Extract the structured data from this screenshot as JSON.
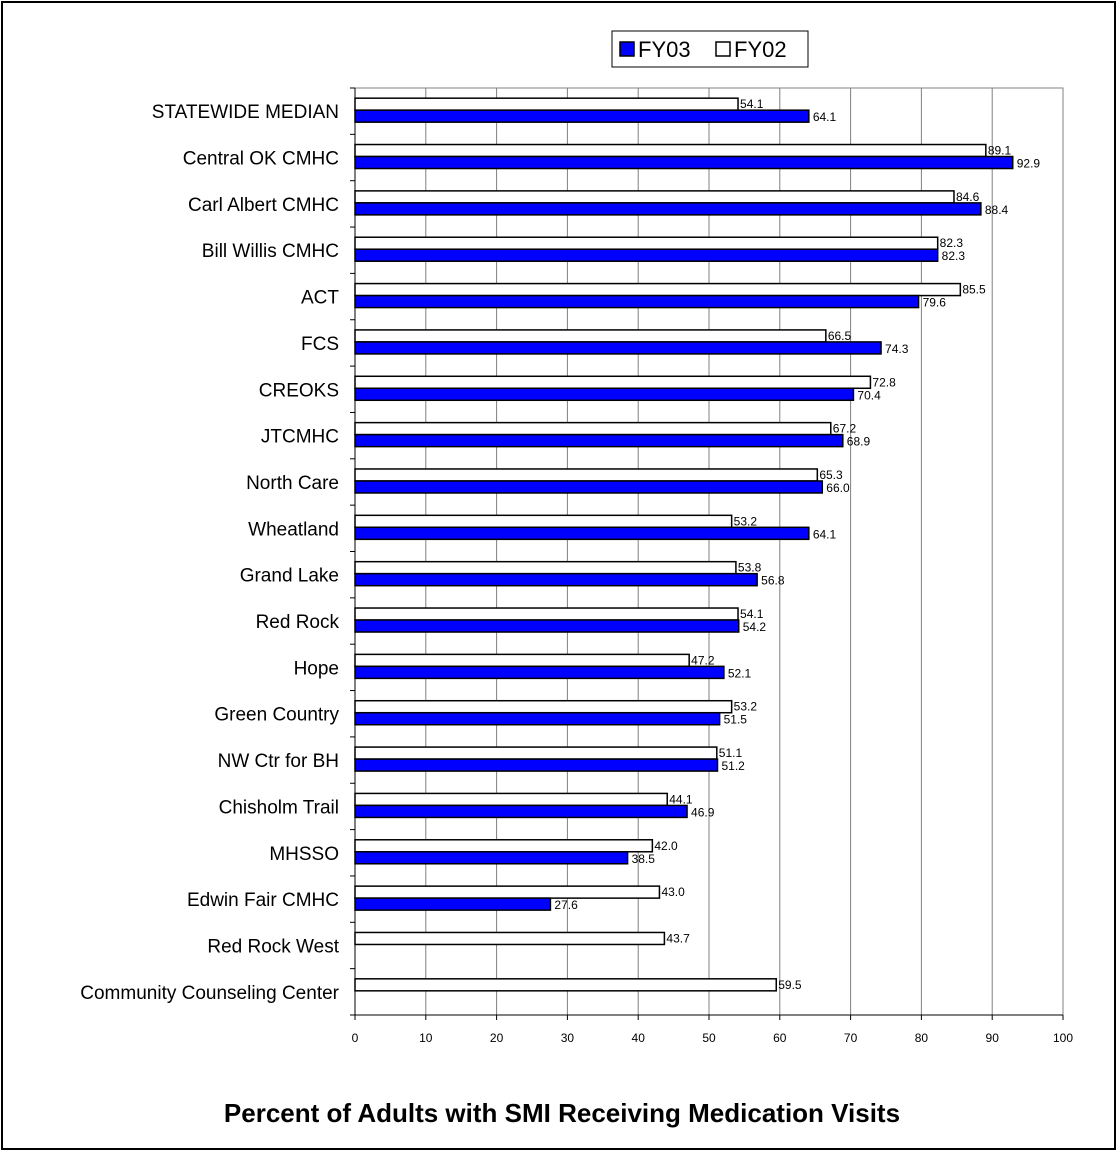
{
  "chart_data": {
    "type": "bar",
    "orientation": "horizontal",
    "title": "Percent of Adults with SMI Receiving Medication Visits",
    "categories": [
      "STATEWIDE MEDIAN",
      "Central OK CMHC",
      "Carl Albert CMHC",
      "Bill Willis CMHC",
      "ACT",
      "FCS",
      "CREOKS",
      "JTCMHC",
      "North Care",
      "Wheatland",
      "Grand Lake",
      "Red Rock",
      "Hope",
      "Green Country",
      "NW Ctr for BH",
      "Chisholm Trail",
      "MHSSO",
      "Edwin Fair CMHC",
      "Red Rock West",
      "Community Counseling Center"
    ],
    "series": [
      {
        "name": "FY02",
        "color": "#ffffff",
        "values": [
          54.1,
          89.1,
          84.6,
          82.3,
          85.5,
          66.5,
          72.8,
          67.2,
          65.3,
          53.2,
          53.8,
          54.1,
          47.2,
          53.2,
          51.1,
          44.1,
          42.0,
          43.0,
          43.7,
          59.5
        ],
        "labels": [
          "54.1",
          "89.1",
          "84.6",
          "82.3",
          "85.5",
          "66.5",
          "72.8",
          "67.2",
          "65.3",
          "53.2",
          "53.8",
          "54.1",
          "47.2",
          "53.2",
          "51.1",
          "44.1",
          "42.0",
          "43.0",
          "43.7",
          "59.5"
        ]
      },
      {
        "name": "FY03",
        "color": "#0000ff",
        "values": [
          64.1,
          92.9,
          88.4,
          82.3,
          79.6,
          74.3,
          70.4,
          68.9,
          66.0,
          64.1,
          56.8,
          54.2,
          52.1,
          51.5,
          51.2,
          46.9,
          38.5,
          27.6,
          null,
          null
        ],
        "labels": [
          "64.1",
          "92.9",
          "88.4",
          "82.3",
          "79.6",
          "74.3",
          "70.4",
          "68.9",
          "66.0",
          "64.1",
          "56.8",
          "54.2",
          "52.1",
          "51.5",
          "51.2",
          "46.9",
          "38.5",
          "27.6",
          null,
          null
        ]
      }
    ],
    "legend": [
      "FY03",
      "FY02"
    ],
    "legend_position": "top",
    "xlim": [
      0,
      100
    ],
    "xticks": [
      "0",
      "10",
      "20",
      "30",
      "40",
      "50",
      "60",
      "70",
      "80",
      "90",
      "100"
    ],
    "grid": "vertical"
  }
}
